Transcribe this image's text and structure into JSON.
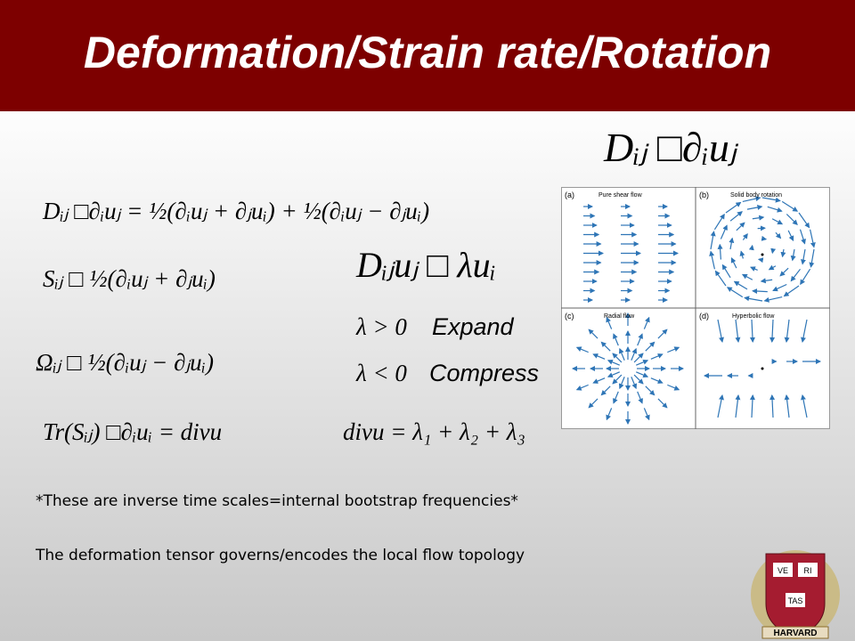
{
  "header": {
    "title": "Deformation/Strain rate/Rotation"
  },
  "equations": {
    "gradient": "Dᵢⱼ □∂ᵢuⱼ",
    "decomposition": "Dᵢⱼ □∂ᵢuⱼ = ½(∂ᵢuⱼ + ∂ⱼuᵢ) + ½(∂ᵢuⱼ − ∂ⱼuᵢ)",
    "strain_rate": "Sᵢⱼ □ ½(∂ᵢuⱼ + ∂ⱼuᵢ)",
    "rotation": "Ωᵢⱼ □ ½(∂ᵢuⱼ − ∂ⱼuᵢ)",
    "trace": "Tr(Sᵢⱼ) □∂ᵢuᵢ = divu",
    "eigen": "Dᵢⱼuⱼ □ λuᵢ",
    "positive": "λ > 0",
    "expand": "Expand",
    "negative": "λ < 0",
    "compress": "Compress",
    "divergence": "divu = λ₁ + λ₂ + λ₃"
  },
  "figure": {
    "panels": [
      {
        "tag": "(a)",
        "label": "Pure shear flow"
      },
      {
        "tag": "(b)",
        "label": "Solid body rotation"
      },
      {
        "tag": "(c)",
        "label": "Radial flow"
      },
      {
        "tag": "(d)",
        "label": "Hyperbolic flow"
      }
    ]
  },
  "notes": [
    "*These are inverse time scales=internal bootstrap frequencies*",
    "The deformation tensor governs/encodes the local flow topology"
  ],
  "logo": {
    "rows": [
      "VE",
      "RI",
      "TAS"
    ],
    "name": "HARVARD"
  }
}
